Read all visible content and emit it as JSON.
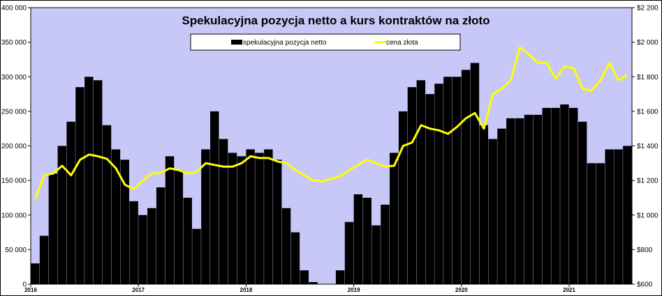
{
  "chart_data": {
    "type": "bar",
    "title": "Spekulacyjna  pozycja netto a kurs  kontraktów na złoto",
    "legend": {
      "placement": "top-center",
      "items": [
        "spekulacyjna pozycja netto",
        "cena złota"
      ]
    },
    "x_tick_labels": [
      "2016",
      "2017",
      "2018",
      "2019",
      "2020",
      "2021"
    ],
    "left_axis": {
      "ylim": [
        0,
        400000
      ],
      "tick_labels": [
        "0",
        "50 000",
        "100 000",
        "150 000",
        "200 000",
        "250 000",
        "300 000",
        "350 000",
        "400 000"
      ]
    },
    "right_axis": {
      "ylim": [
        600,
        2200
      ],
      "tick_labels": [
        "$600",
        "$800",
        "$1 000",
        "$1 200",
        "$1 400",
        "$1 600",
        "$1 800",
        "$2 000",
        "$2 200"
      ]
    },
    "grid": false,
    "colors": {
      "plot_background": "#c8c8f8",
      "bars": "#000000",
      "gold_line": "#ffff00",
      "frame": "#000000"
    },
    "series": [
      {
        "name": "spekulacyjna pozycja netto",
        "type": "bar",
        "axis": "left",
        "x": [
          "2016-01",
          "2016-02",
          "2016-03",
          "2016-04",
          "2016-05",
          "2016-06",
          "2016-07",
          "2016-08",
          "2016-09",
          "2016-10",
          "2016-11",
          "2016-12",
          "2017-01",
          "2017-02",
          "2017-03",
          "2017-04",
          "2017-05",
          "2017-06",
          "2017-07",
          "2017-08",
          "2017-09",
          "2017-10",
          "2017-11",
          "2017-12",
          "2018-01",
          "2018-02",
          "2018-03",
          "2018-04",
          "2018-05",
          "2018-06",
          "2018-07",
          "2018-08",
          "2018-09",
          "2018-10",
          "2018-11",
          "2018-12",
          "2019-01",
          "2019-02",
          "2019-03",
          "2019-04",
          "2019-05",
          "2019-06",
          "2019-07",
          "2019-08",
          "2019-09",
          "2019-10",
          "2019-11",
          "2019-12",
          "2020-01",
          "2020-02",
          "2020-03",
          "2020-04",
          "2020-05",
          "2020-06",
          "2020-07",
          "2020-08",
          "2020-09",
          "2020-10",
          "2020-11",
          "2020-12",
          "2021-01",
          "2021-02",
          "2021-03",
          "2021-04",
          "2021-05",
          "2021-06",
          "2021-07"
        ],
        "values": [
          30000,
          70000,
          160000,
          200000,
          235000,
          285000,
          300000,
          295000,
          230000,
          195000,
          180000,
          120000,
          100000,
          110000,
          140000,
          185000,
          165000,
          125000,
          80000,
          195000,
          250000,
          210000,
          190000,
          185000,
          195000,
          190000,
          195000,
          180000,
          110000,
          75000,
          20000,
          3000,
          0,
          0,
          20000,
          90000,
          130000,
          125000,
          85000,
          115000,
          190000,
          250000,
          285000,
          295000,
          275000,
          290000,
          300000,
          300000,
          310000,
          320000,
          230000,
          210000,
          225000,
          240000,
          240000,
          245000,
          245000,
          255000,
          255000,
          260000,
          255000,
          235000,
          175000,
          175000,
          195000,
          195000,
          200000
        ]
      },
      {
        "name": "cena złota",
        "type": "line",
        "axis": "right",
        "x": [
          "2016-01",
          "2016-02",
          "2016-03",
          "2016-04",
          "2016-05",
          "2016-06",
          "2016-07",
          "2016-08",
          "2016-09",
          "2016-10",
          "2016-11",
          "2016-12",
          "2017-01",
          "2017-02",
          "2017-03",
          "2017-04",
          "2017-05",
          "2017-06",
          "2017-07",
          "2017-08",
          "2017-09",
          "2017-10",
          "2017-11",
          "2017-12",
          "2018-01",
          "2018-02",
          "2018-03",
          "2018-04",
          "2018-05",
          "2018-06",
          "2018-07",
          "2018-08",
          "2018-09",
          "2018-10",
          "2018-11",
          "2018-12",
          "2019-01",
          "2019-02",
          "2019-03",
          "2019-04",
          "2019-05",
          "2019-06",
          "2019-07",
          "2019-08",
          "2019-09",
          "2019-10",
          "2019-11",
          "2019-12",
          "2020-01",
          "2020-02",
          "2020-03",
          "2020-04",
          "2020-05",
          "2020-06",
          "2020-07",
          "2020-08",
          "2020-09",
          "2020-10",
          "2020-11",
          "2020-12",
          "2021-01",
          "2021-02",
          "2021-03",
          "2021-04",
          "2021-05",
          "2021-06",
          "2021-07"
        ],
        "values": [
          1095,
          1230,
          1240,
          1285,
          1230,
          1320,
          1350,
          1340,
          1325,
          1270,
          1175,
          1150,
          1200,
          1240,
          1245,
          1270,
          1260,
          1240,
          1250,
          1300,
          1290,
          1280,
          1280,
          1300,
          1340,
          1330,
          1330,
          1310,
          1300,
          1260,
          1230,
          1200,
          1195,
          1210,
          1225,
          1260,
          1290,
          1320,
          1300,
          1280,
          1285,
          1400,
          1420,
          1520,
          1500,
          1490,
          1470,
          1510,
          1560,
          1590,
          1500,
          1700,
          1730,
          1780,
          1970,
          1930,
          1880,
          1880,
          1790,
          1860,
          1850,
          1730,
          1720,
          1780,
          1880,
          1780,
          1810
        ]
      }
    ]
  }
}
